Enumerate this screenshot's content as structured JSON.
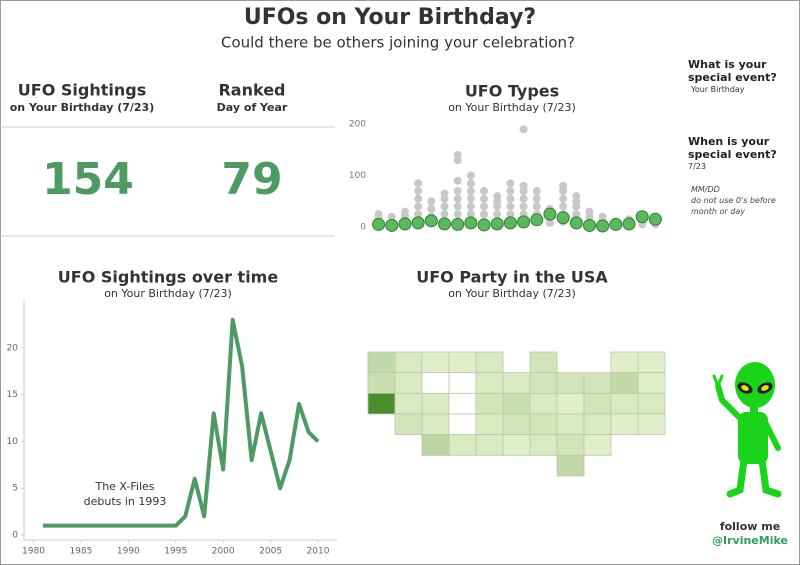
{
  "header": {
    "title": "UFOs on Your Birthday?",
    "subtitle": "Could there be others joining your celebration?"
  },
  "kpis": [
    {
      "title": "UFO Sightings",
      "subtitle": "on Your Birthday (7/23)",
      "value": 154
    },
    {
      "title": "Ranked",
      "subtitle": "Day of Year",
      "value": 79
    }
  ],
  "chart_data": [
    {
      "type": "scatter",
      "title": "UFO Types",
      "subtitle": "on Your Birthday (7/23)",
      "categories": [
        null,
        null,
        null,
        null,
        null,
        null,
        null,
        null,
        null,
        null,
        null,
        null,
        null,
        null,
        null,
        null,
        null,
        null,
        null,
        null,
        null,
        null
      ],
      "series": [
        {
          "color": "#c8c8c8",
          "values": [
            [
              5,
              12,
              18,
              25
            ],
            [
              3,
              10,
              20
            ],
            [
              5,
              15,
              22,
              30
            ],
            [
              10,
              25,
              40,
              55,
              70,
              85
            ],
            [
              8,
              20,
              35,
              50
            ],
            [
              10,
              25,
              40,
              55,
              65
            ],
            [
              10,
              25,
              40,
              55,
              70,
              90,
              130,
              140
            ],
            [
              10,
              25,
              40,
              55,
              70,
              85,
              100
            ],
            [
              10,
              25,
              40,
              55,
              70
            ],
            [
              10,
              25,
              40,
              50,
              60
            ],
            [
              10,
              25,
              40,
              55,
              70,
              85
            ],
            [
              10,
              25,
              40,
              55,
              70,
              80,
              190
            ],
            [
              10,
              25,
              40,
              55,
              70
            ],
            [
              8,
              20,
              35
            ],
            [
              10,
              25,
              40,
              55,
              70,
              80
            ],
            [
              10,
              25,
              40,
              50,
              60
            ],
            [
              8,
              20,
              30
            ],
            [
              5,
              12,
              20
            ],
            [
              5,
              10
            ],
            [
              5,
              15
            ],
            [
              5,
              10
            ],
            [
              5,
              10
            ]
          ]
        },
        {
          "color": "#5cb85c",
          "values": [
            5,
            3,
            6,
            8,
            12,
            6,
            5,
            8,
            4,
            6,
            8,
            10,
            14,
            25,
            18,
            8,
            3,
            2,
            5,
            6,
            20,
            15
          ]
        }
      ],
      "ylim": [
        0,
        210
      ],
      "yticks": [
        0,
        100,
        200
      ]
    },
    {
      "type": "line",
      "title": "UFO Sightings over time",
      "subtitle": "on Your Birthday (7/23)",
      "x": [
        1981,
        1982,
        1983,
        1984,
        1985,
        1986,
        1987,
        1988,
        1989,
        1990,
        1991,
        1992,
        1993,
        1994,
        1995,
        1996,
        1997,
        1998,
        1999,
        2000,
        2001,
        2002,
        2003,
        2004,
        2005,
        2006,
        2007,
        2008,
        2009,
        2010
      ],
      "values": [
        1,
        1,
        1,
        1,
        1,
        1,
        1,
        1,
        1,
        1,
        1,
        1,
        1,
        1,
        1,
        2,
        6,
        2,
        13,
        7,
        23,
        18,
        8,
        13,
        9,
        5,
        8,
        14,
        11,
        10
      ],
      "color": "#4e9a63",
      "xlim": [
        1979,
        2012
      ],
      "xticks": [
        1980,
        1985,
        1990,
        1995,
        2000,
        2005,
        2010
      ],
      "ylim": [
        0,
        25
      ],
      "yticks": [
        0,
        5,
        10,
        15,
        20
      ],
      "annotation": [
        "The X-Files",
        "debuts in 1993"
      ]
    },
    {
      "type": "choropleth",
      "title": "UFO Party in the USA",
      "subtitle": "on Your Birthday (7/23)",
      "values": [
        5,
        2,
        1,
        1,
        2,
        3,
        1,
        1,
        4,
        2,
        0,
        0,
        2,
        2,
        3,
        3,
        3,
        5,
        1,
        20,
        2,
        2,
        0,
        3,
        4,
        2,
        1,
        3,
        2,
        2,
        3,
        2,
        0,
        2,
        3,
        3,
        2,
        2,
        1,
        1,
        6,
        2,
        2,
        1,
        2,
        3,
        1,
        5
      ],
      "color_low": "#eaf3d2",
      "color_high": "#4a8f2e",
      "zero_color": "#ffffff"
    }
  ],
  "controls": {
    "event_label": "What is your special event?",
    "event_value": "Your Birthday",
    "date_label": "When is your special event?",
    "date_value": "7/23",
    "date_hint": "MM/DD",
    "date_note": "do not use 0's before month or day"
  },
  "footer": {
    "follow": "follow me",
    "handle": "@IrvineMike"
  }
}
